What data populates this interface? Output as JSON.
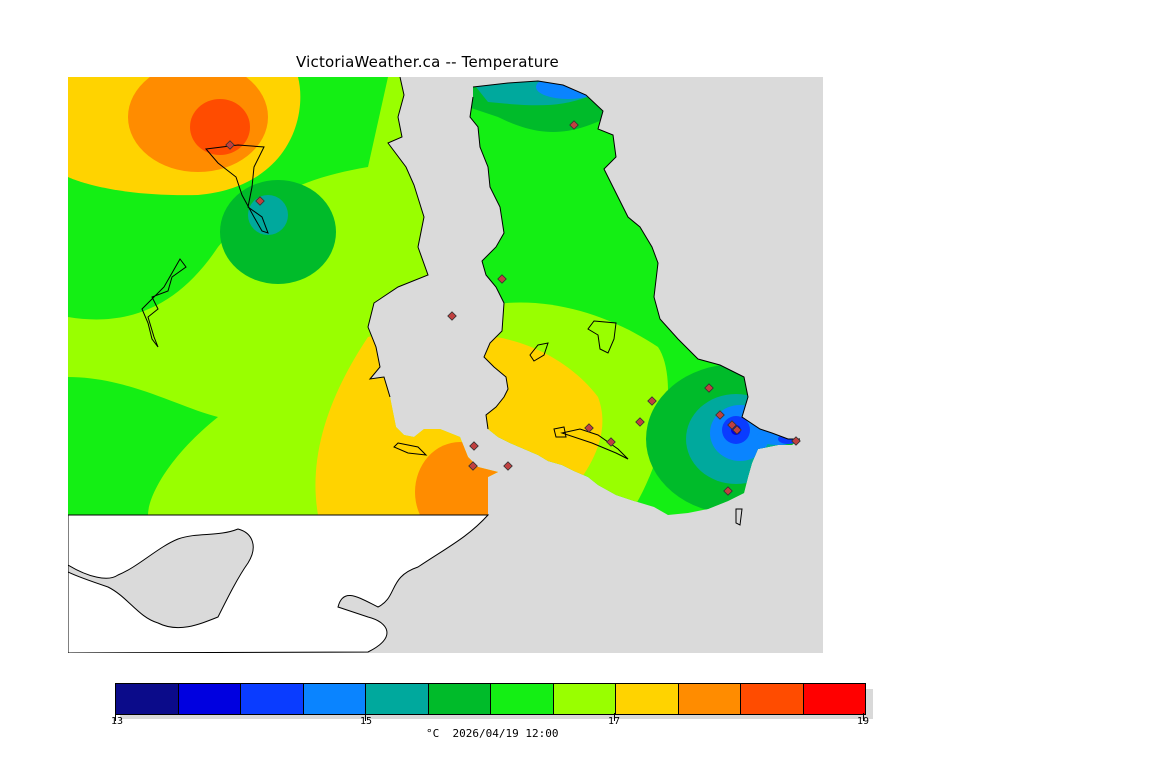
{
  "title": "VictoriaWeather.ca -- Temperature",
  "legend": {
    "min": 13,
    "max": 19,
    "tick_labels": [
      "13",
      "15",
      "17",
      "19"
    ],
    "colors": [
      "#0b0b8a",
      "#0000e0",
      "#0a3cff",
      "#0a84ff",
      "#00a99d",
      "#00bb2a",
      "#14ef14",
      "#99ff00",
      "#ffd300",
      "#ff8c00",
      "#ff4c00",
      "#ff0000"
    ],
    "unit_label": "°C",
    "timestamp": "2026/04/19 12:00"
  },
  "map": {
    "background": "#dadada",
    "land_outside": "#ffffff",
    "hotspots": [
      "#ff8c00",
      "#ff4c00"
    ],
    "coldspot": "#0a3cff"
  }
}
